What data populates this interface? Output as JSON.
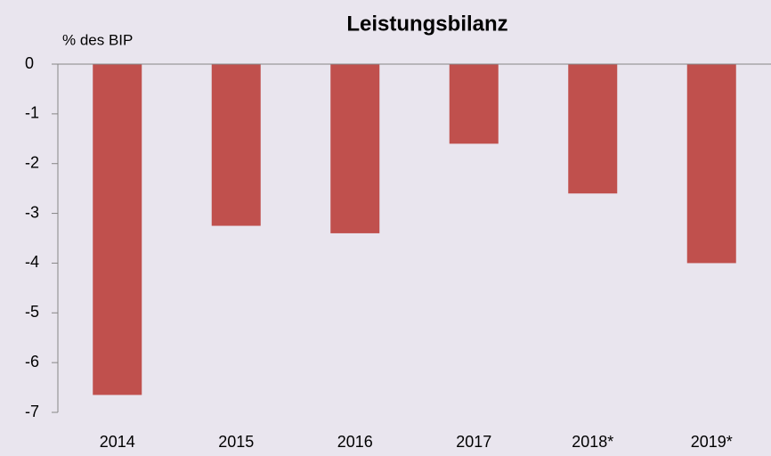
{
  "chart_data": {
    "type": "bar",
    "title": "Leistungsbilanz",
    "y_label": "% des BIP",
    "categories": [
      "2014",
      "2015",
      "2016",
      "2017",
      "2018*",
      "2019*"
    ],
    "values": [
      -6.65,
      -3.25,
      -3.4,
      -1.6,
      -2.6,
      -4.0
    ],
    "color": "#c0504d",
    "ylim": [
      -7,
      0
    ],
    "yticks": [
      0,
      -1,
      -2,
      -3,
      -4,
      -5,
      -6,
      -7
    ],
    "grid": false
  }
}
